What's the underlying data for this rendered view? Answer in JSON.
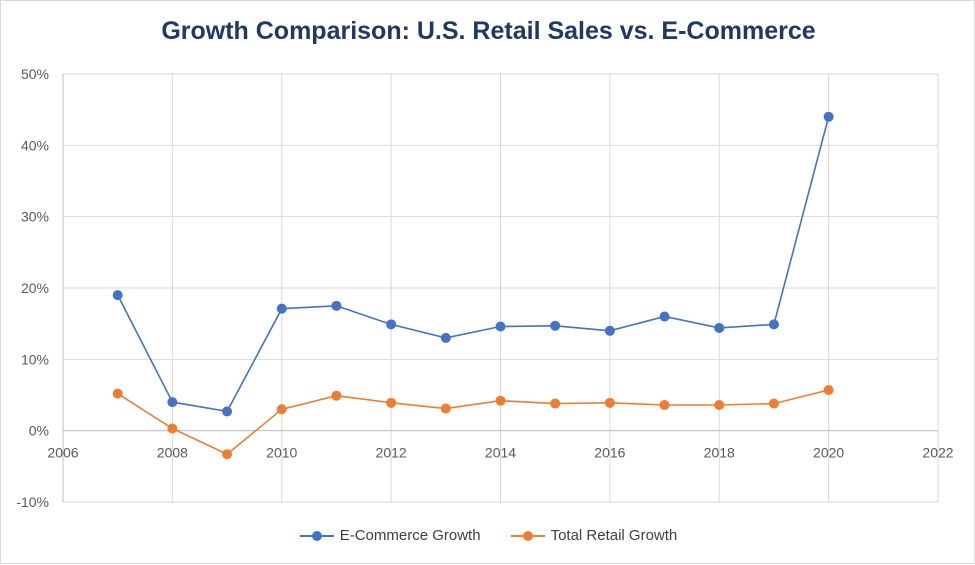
{
  "chart_data": {
    "type": "scatter",
    "title": "Growth Comparison: U.S. Retail Sales vs. E-Commerce",
    "xlabel": "",
    "ylabel": "",
    "xlim": [
      2006,
      2022
    ],
    "ylim": [
      -10,
      50
    ],
    "x_ticks": [
      "2006",
      "2008",
      "2010",
      "2012",
      "2014",
      "2016",
      "2018",
      "2020",
      "2022"
    ],
    "y_ticks": [
      "-10%",
      "0%",
      "10%",
      "20%",
      "30%",
      "40%",
      "50%"
    ],
    "grid": true,
    "legend_position": "bottom",
    "x": [
      2007,
      2008,
      2009,
      2010,
      2011,
      2012,
      2013,
      2014,
      2015,
      2016,
      2017,
      2018,
      2019,
      2020
    ],
    "series": [
      {
        "name": "E-Commerce Growth",
        "color": "#4472c4",
        "values": [
          19.0,
          4.0,
          2.7,
          17.1,
          17.5,
          14.9,
          13.0,
          14.6,
          14.7,
          14.0,
          16.0,
          14.4,
          14.9,
          44.0
        ]
      },
      {
        "name": "Total Retail Growth",
        "color": "#ed7d31",
        "values": [
          5.2,
          0.3,
          -3.3,
          3.0,
          4.9,
          3.9,
          3.1,
          4.2,
          3.8,
          3.9,
          3.6,
          3.6,
          3.8,
          5.7
        ]
      }
    ]
  }
}
